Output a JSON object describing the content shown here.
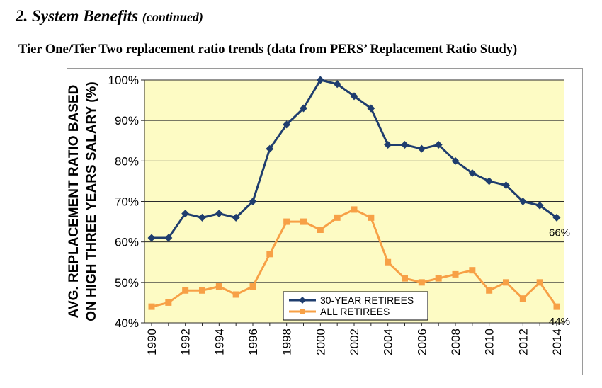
{
  "header": {
    "section_title": "2. System Benefits",
    "section_subtitle": "(continued)"
  },
  "chart_title": "Tier One/Tier Two replacement ratio trends (data from PERS’ Replacement Ratio Study)",
  "colors": {
    "series_30yr": "#1f3d6e",
    "series_all": "#f7a046",
    "plot_background": "#fdfbc4",
    "grid": "#2a2a2a"
  },
  "chart_data": {
    "type": "line",
    "title": "",
    "ylabel_line1": "AVG. REPLACEMENT RATIO BASED",
    "ylabel_line2": "ON HIGH THREE YEARS SALARY (%)",
    "xlabel": "",
    "x": [
      1990,
      1991,
      1992,
      1993,
      1994,
      1995,
      1996,
      1997,
      1998,
      1999,
      2000,
      2001,
      2002,
      2003,
      2004,
      2005,
      2006,
      2007,
      2008,
      2009,
      2010,
      2011,
      2012,
      2013,
      2014
    ],
    "xticks": [
      "1990",
      "1992",
      "1994",
      "1996",
      "1998",
      "2000",
      "2002",
      "2004",
      "2006",
      "2008",
      "2010",
      "2012",
      "2014"
    ],
    "ylim": [
      40,
      100
    ],
    "yticks": [
      "40%",
      "50%",
      "60%",
      "70%",
      "80%",
      "90%",
      "100%"
    ],
    "grid": "horizontal",
    "legend_position": "bottom-center",
    "series": [
      {
        "name": "30-YEAR RETIREES",
        "marker": "diamond",
        "values": [
          61,
          61,
          67,
          66,
          67,
          66,
          70,
          83,
          89,
          93,
          100,
          99,
          96,
          93,
          84,
          84,
          83,
          84,
          80,
          77,
          75,
          74,
          70,
          69,
          66
        ],
        "end_label": "66%"
      },
      {
        "name": "ALL RETIREES",
        "marker": "square",
        "values": [
          44,
          45,
          48,
          48,
          49,
          47,
          49,
          57,
          65,
          65,
          63,
          66,
          68,
          66,
          55,
          51,
          50,
          51,
          52,
          53,
          48,
          50,
          46,
          50,
          44
        ],
        "end_label": "44%"
      }
    ]
  }
}
